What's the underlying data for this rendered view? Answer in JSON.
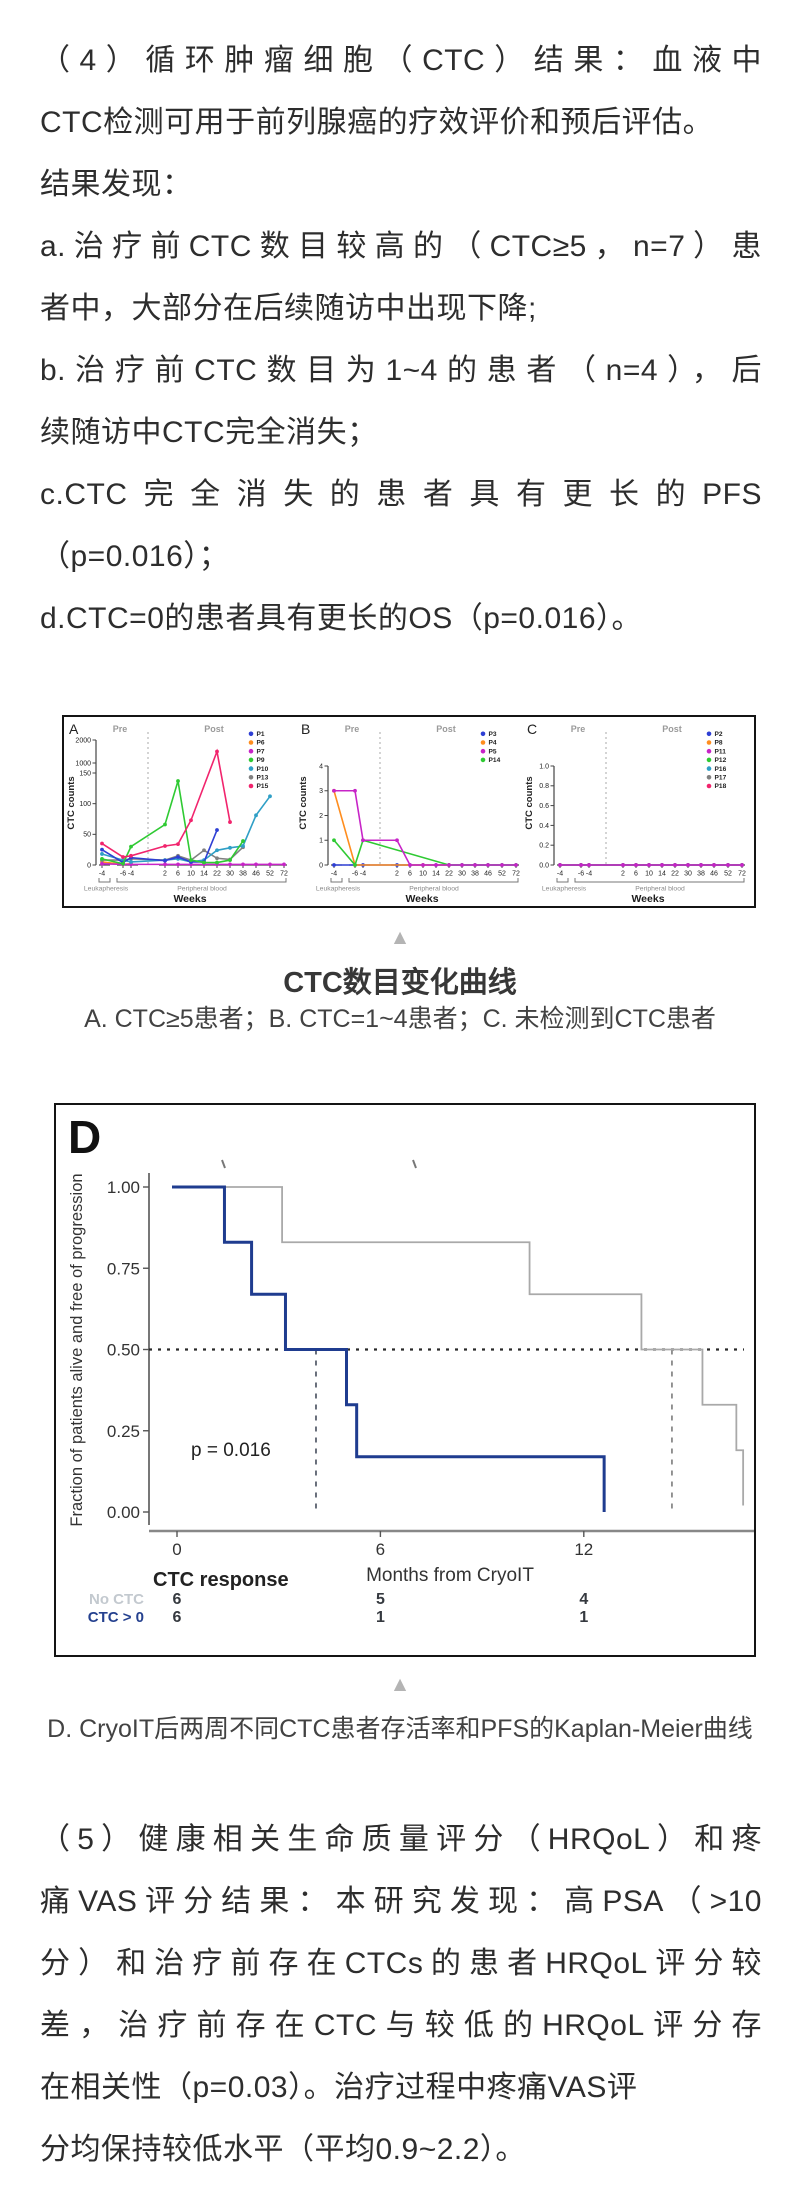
{
  "intro_lines": [
    {
      "t": "（4）循环肿瘤细胞（CTC）结果：血液中",
      "j": true
    },
    {
      "t": "CTC检测可用于前列腺癌的疗效评价和预后评估。",
      "j": false
    },
    {
      "t": "结果发现：",
      "j": false
    },
    {
      "t": "a.治疗前CTC数目较高的（CTC≥5，n=7）患",
      "j": true
    },
    {
      "t": "者中，大部分在后续随访中出现下降;",
      "j": false
    },
    {
      "t": "b.治疗前CTC数目为1~4的患者（n=4），后",
      "j": true
    },
    {
      "t": "续随访中CTC完全消失；",
      "j": false
    },
    {
      "t": "c.CTC完全消失的患者具有更长的PFS",
      "j": true
    },
    {
      "t": "（p=0.016）；",
      "j": false
    },
    {
      "t": "d.CTC=0的患者具有更长的OS（p=0.016）。",
      "j": false
    }
  ],
  "outro_lines": [
    {
      "t": "（5）健康相关生命质量评分（HRQoL）和疼",
      "j": true
    },
    {
      "t": "痛VAS评分结果：本研究发现：高PSA（>10",
      "j": true
    },
    {
      "t": "分）和治疗前存在CTCs的患者HRQoL评分较",
      "j": true
    },
    {
      "t": "差，治疗前存在CTC与较低的HRQoL评分存",
      "j": true
    },
    {
      "t": "在相关性（p=0.03）。治疗过程中疼痛VAS评",
      "j": false
    },
    {
      "t": "分均保持较低水平（平均0.9~2.2）。",
      "j": false
    }
  ],
  "fig1": {
    "marker": "▲",
    "caption_title": "CTC数目变化曲线",
    "caption_subtitle": "A. CTC≥5患者；B. CTC=1~4患者；C. 未检测到CTC患者"
  },
  "fig2": {
    "marker": "▲",
    "caption": "D. CryoIT后两周不同CTC患者存活率和PFS的Kaplan-Meier曲线"
  },
  "chart_data": [
    {
      "id": "A",
      "type": "line",
      "panel_label": "A",
      "xlabel": "Weeks",
      "ylabel": "CTC counts",
      "x_categories": [
        "-4",
        "-6",
        "-4",
        "2",
        "6",
        "10",
        "14",
        "22",
        "30",
        "38",
        "46",
        "52",
        "72"
      ],
      "yticks": [
        {
          "label": "0",
          "v": 0
        },
        {
          "label": "50",
          "v": 50
        },
        {
          "label": "100",
          "v": 100
        },
        {
          "label": "150",
          "v": 150
        },
        {
          "label": "1000",
          "v": 1000
        },
        {
          "label": "2000",
          "v": 2000
        }
      ],
      "annotations": {
        "pre": "Pre",
        "post": "Post",
        "bracket1": "Leukapheresis",
        "bracket2": "Peripheral blood"
      },
      "legend": [
        "P1",
        "P6",
        "P7",
        "P9",
        "P10",
        "P13",
        "P15"
      ],
      "series": [
        {
          "name": "P6",
          "color": "#ff8d1e",
          "points": [
            [
              0,
              5
            ],
            [
              1,
              1
            ],
            [
              2,
              2
            ]
          ]
        },
        {
          "name": "P7",
          "color": "#c724c7",
          "points": [
            [
              0,
              2
            ],
            [
              1,
              1
            ],
            [
              2,
              1
            ],
            [
              3,
              1
            ],
            [
              4,
              1
            ],
            [
              5,
              1
            ],
            [
              6,
              1
            ],
            [
              7,
              1
            ],
            [
              8,
              1
            ],
            [
              9,
              1
            ],
            [
              10,
              1
            ],
            [
              11,
              1
            ],
            [
              12,
              1
            ]
          ]
        },
        {
          "name": "P13",
          "color": "#808080",
          "points": [
            [
              0,
              8
            ],
            [
              1,
              8
            ],
            [
              2,
              10
            ],
            [
              3,
              8
            ],
            [
              4,
              15
            ],
            [
              5,
              8
            ],
            [
              6,
              24
            ],
            [
              7,
              11
            ],
            [
              8,
              9
            ],
            [
              9,
              29
            ]
          ]
        },
        {
          "name": "P10",
          "color": "#2f9fc6",
          "points": [
            [
              0,
              18
            ],
            [
              1,
              8
            ],
            [
              2,
              5
            ],
            [
              3,
              8
            ],
            [
              4,
              10
            ],
            [
              5,
              5
            ],
            [
              6,
              8
            ],
            [
              7,
              24
            ],
            [
              8,
              28
            ],
            [
              9,
              31
            ],
            [
              10,
              81
            ],
            [
              11,
              112
            ]
          ]
        },
        {
          "name": "P1",
          "color": "#2e3fd4",
          "points": [
            [
              0,
              25
            ],
            [
              1,
              4
            ],
            [
              2,
              12
            ],
            [
              3,
              7
            ],
            [
              4,
              13
            ],
            [
              5,
              5
            ],
            [
              6,
              5
            ],
            [
              7,
              57
            ]
          ]
        },
        {
          "name": "P9",
          "color": "#2fca33",
          "points": [
            [
              0,
              10
            ],
            [
              1,
              2
            ],
            [
              2,
              30
            ],
            [
              3,
              66
            ],
            [
              4,
              137
            ],
            [
              5,
              8
            ],
            [
              6,
              4
            ],
            [
              7,
              4
            ],
            [
              8,
              8
            ],
            [
              9,
              39
            ]
          ]
        },
        {
          "name": "P15",
          "color": "#f1246d",
          "points": [
            [
              0,
              35
            ],
            [
              1,
              13
            ],
            [
              2,
              15
            ],
            [
              3,
              31
            ],
            [
              4,
              34
            ],
            [
              5,
              73
            ],
            [
              7,
              1500
            ],
            [
              8,
              70
            ]
          ]
        }
      ]
    },
    {
      "id": "B",
      "type": "line",
      "panel_label": "B",
      "xlabel": "Weeks",
      "ylabel": "CTC counts",
      "x_categories": [
        "-4",
        "-6",
        "-4",
        "2",
        "6",
        "10",
        "14",
        "22",
        "30",
        "38",
        "46",
        "52",
        "72"
      ],
      "yticks": [
        {
          "label": "0",
          "v": 0
        },
        {
          "label": "1",
          "v": 1
        },
        {
          "label": "2",
          "v": 2
        },
        {
          "label": "3",
          "v": 3
        },
        {
          "label": "4",
          "v": 4
        }
      ],
      "annotations": {
        "pre": "Pre",
        "post": "Post",
        "bracket1": "Leukapheresis",
        "bracket2": "Peripheral blood"
      },
      "legend": [
        "P3",
        "P4",
        "P5",
        "P14"
      ],
      "series": [
        {
          "name": "P3",
          "color": "#2e3fd4",
          "zero_line": true
        },
        {
          "name": "P4",
          "color": "#ff8d1e",
          "points": [
            [
              0,
              3
            ],
            [
              1,
              0
            ],
            [
              5,
              0
            ],
            [
              7,
              0
            ]
          ]
        },
        {
          "name": "P14",
          "color": "#2fca33",
          "points": [
            [
              0,
              1
            ],
            [
              1,
              0
            ],
            [
              2,
              1
            ],
            [
              7,
              0
            ],
            [
              8,
              0
            ],
            [
              9,
              0
            ],
            [
              10,
              0
            ],
            [
              11,
              0
            ],
            [
              12,
              0
            ]
          ]
        },
        {
          "name": "P5",
          "color": "#c724c7",
          "points": [
            [
              0,
              3
            ],
            [
              1,
              3
            ],
            [
              2,
              1
            ],
            [
              3,
              1
            ],
            [
              4,
              0
            ],
            [
              5,
              0
            ],
            [
              6,
              0
            ],
            [
              7,
              0
            ],
            [
              8,
              0
            ],
            [
              9,
              0
            ],
            [
              10,
              0
            ],
            [
              11,
              0
            ],
            [
              12,
              0
            ]
          ]
        }
      ]
    },
    {
      "id": "C",
      "type": "line",
      "panel_label": "C",
      "xlabel": "Weeks",
      "ylabel": "CTC counts",
      "x_categories": [
        "-4",
        "-6",
        "-4",
        "2",
        "6",
        "10",
        "14",
        "22",
        "30",
        "38",
        "46",
        "52",
        "72"
      ],
      "yticks": [
        {
          "label": "0.0",
          "v": 0
        },
        {
          "label": "0.2",
          "v": 0.2
        },
        {
          "label": "0.4",
          "v": 0.4
        },
        {
          "label": "0.6",
          "v": 0.6
        },
        {
          "label": "0.8",
          "v": 0.8
        },
        {
          "label": "1.0",
          "v": 1.0
        }
      ],
      "annotations": {
        "pre": "Pre",
        "post": "Post",
        "bracket1": "Leukapheresis",
        "bracket2": "Peripheral blood"
      },
      "legend": [
        "P2",
        "P8",
        "P11",
        "P12",
        "P16",
        "P17",
        "P18"
      ],
      "series": [
        {
          "name": "P2",
          "color": "#2e3fd4",
          "zero_line": true
        },
        {
          "name": "P8",
          "color": "#ff8d1e",
          "zero_line": true
        },
        {
          "name": "P18",
          "color": "#f1246d",
          "zero_line": true
        },
        {
          "name": "P12",
          "color": "#2fca33",
          "zero_line": true
        },
        {
          "name": "P16",
          "color": "#2f9fc6",
          "zero_line": true
        },
        {
          "name": "P17",
          "color": "#808080",
          "zero_line": true
        },
        {
          "name": "P11",
          "color": "#c724c7",
          "zero_line": true
        }
      ]
    },
    {
      "id": "D",
      "type": "km_step",
      "panel_label": "D",
      "xlabel": "Months from CryoIT",
      "ylabel": "Fraction of patients alive and free of progression",
      "xticks": [
        "0",
        "6",
        "12"
      ],
      "yticks": [
        {
          "label": "1.00",
          "v": 1.0
        },
        {
          "label": "0.75",
          "v": 0.75
        },
        {
          "label": "0.50",
          "v": 0.5
        },
        {
          "label": "0.25",
          "v": 0.25
        },
        {
          "label": "0.00",
          "v": 0.0
        }
      ],
      "p_label": "p = 0.016",
      "median_months": [
        4.1,
        14.6
      ],
      "series": [
        {
          "name": "No CTC",
          "color": "#a9a9a9",
          "steps": [
            [
              0,
              1.0
            ],
            [
              3.1,
              0.83
            ],
            [
              10.4,
              0.67
            ],
            [
              13.7,
              0.5
            ],
            [
              15.5,
              0.33
            ],
            [
              16.5,
              0.19
            ],
            [
              16.7,
              0.02
            ]
          ]
        },
        {
          "name": "CTC > 0",
          "color": "#1f3c8f",
          "steps": [
            [
              0,
              1.0
            ],
            [
              1.4,
              0.83
            ],
            [
              2.2,
              0.67
            ],
            [
              3.2,
              0.5
            ],
            [
              5.0,
              0.33
            ],
            [
              5.3,
              0.17
            ],
            [
              12.6,
              0.0
            ]
          ]
        }
      ],
      "risk_table": {
        "header": "CTC response",
        "timepoints": [
          "0",
          "6",
          "12"
        ],
        "rows": [
          {
            "label": "No CTC",
            "color": "#c3c9cf",
            "counts": [
              "6",
              "5",
              "4"
            ]
          },
          {
            "label": "CTC > 0",
            "color": "#25418f",
            "counts": [
              "6",
              "1",
              "1"
            ]
          }
        ]
      }
    }
  ]
}
